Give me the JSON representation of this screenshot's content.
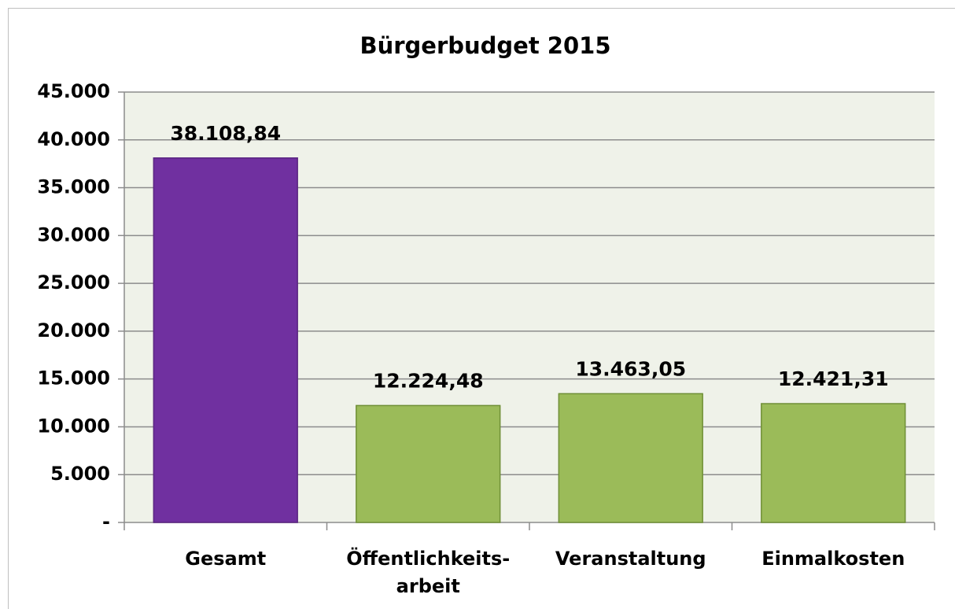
{
  "chart_data": {
    "type": "bar",
    "title": "Bürgerbudget 2015",
    "categories": [
      "Gesamt",
      "Öffentlichkeits-\narbeit",
      "Veranstaltung",
      "Einmalkosten"
    ],
    "values": [
      38108.84,
      12224.48,
      13463.05,
      12421.31
    ],
    "value_labels": [
      "38.108,84",
      "12.224,48",
      "13.463,05",
      "12.421,31"
    ],
    "colors": [
      "#7030a0",
      "#9bbb59",
      "#9bbb59",
      "#9bbb59"
    ],
    "ylim": [
      0,
      45000
    ],
    "yticks": [
      {
        "value": 0,
        "label": "-"
      },
      {
        "value": 5000,
        "label": "5.000"
      },
      {
        "value": 10000,
        "label": "10.000"
      },
      {
        "value": 15000,
        "label": "15.000"
      },
      {
        "value": 20000,
        "label": "20.000"
      },
      {
        "value": 25000,
        "label": "25.000"
      },
      {
        "value": 30000,
        "label": "30.000"
      },
      {
        "value": 35000,
        "label": "35.000"
      },
      {
        "value": 40000,
        "label": "40.000"
      },
      {
        "value": 45000,
        "label": "45.000"
      }
    ],
    "grid": true
  }
}
